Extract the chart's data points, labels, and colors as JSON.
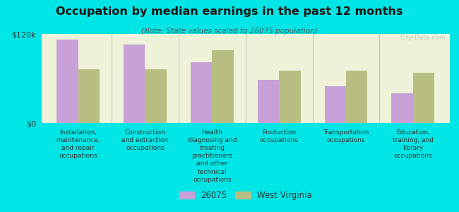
{
  "title": "Occupation by median earnings in the past 12 months",
  "subtitle": "(Note: State values scaled to 26075 population)",
  "background_color": "#00e5e5",
  "plot_bg_color": "#edf2d8",
  "bar_color_26075": "#c8a0d8",
  "bar_color_wv": "#b8be82",
  "ylim": [
    0,
    120000
  ],
  "yticks": [
    0,
    120000
  ],
  "ytick_labels": [
    "$0",
    "$120k"
  ],
  "categories": [
    "Installation,\nmaintenance,\nand repair\noccupations",
    "Construction\nand extraction\noccupations",
    "Health\ndiagnosing and\ntreating\npractitioners\nand other\ntechnical\noccupations",
    "Production\noccupations",
    "Transportation\noccupations",
    "Education,\ntraining, and\nlibrary\noccupations"
  ],
  "values_26075": [
    112000,
    106000,
    82000,
    58000,
    50000,
    40000
  ],
  "values_wv": [
    72000,
    72000,
    98000,
    70000,
    70000,
    68000
  ],
  "legend_labels": [
    "26075",
    "West Virginia"
  ],
  "watermark": "City-Data.com"
}
